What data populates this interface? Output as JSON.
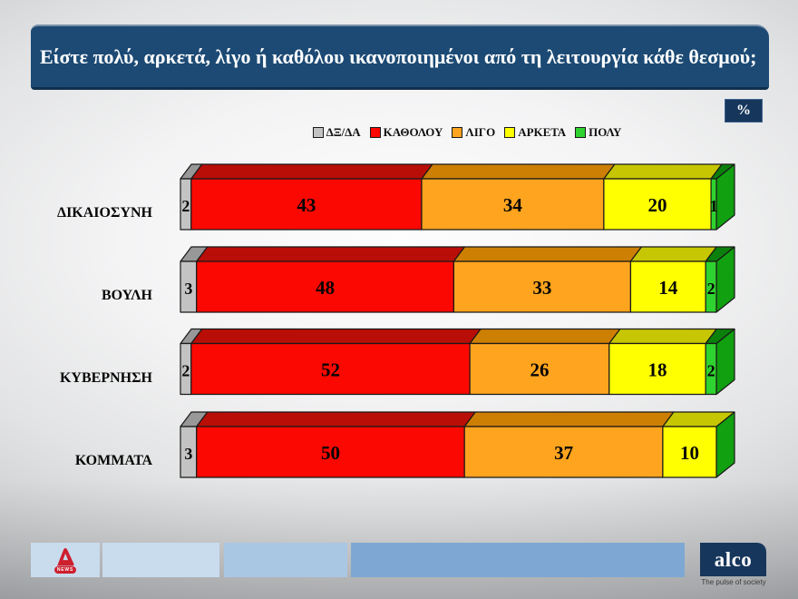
{
  "title": "Είστε πολύ, αρκετά, λίγο ή καθόλου ικανοποιημένοι από τη λειτουργία κάθε θεσμού;",
  "percent_label": "%",
  "chart_data": {
    "type": "bar",
    "stacked": true,
    "orientation": "horizontal",
    "title": "Είστε πολύ, αρκετά, λίγο ή καθόλου ικανοποιημένοι από τη λειτουργία κάθε θεσμού;",
    "categories": [
      "ΔΙΚΑΙΟΣΥΝΗ",
      "ΒΟΥΛΗ",
      "ΚΥΒΕΡΝΗΣΗ",
      "ΚΟΜΜΑΤΑ"
    ],
    "series": [
      {
        "name": "ΔΞ/ΔΑ",
        "color": "#c3c3c3",
        "top_color": "#989898",
        "values": [
          2,
          3,
          2,
          3
        ]
      },
      {
        "name": "ΚΑΘΟΛΟΥ",
        "color": "#fb0802",
        "top_color": "#b90e07",
        "values": [
          43,
          48,
          52,
          50
        ]
      },
      {
        "name": "ΛΙΓΟ",
        "color": "#ffa41e",
        "top_color": "#cd7f04",
        "values": [
          34,
          33,
          26,
          37
        ]
      },
      {
        "name": "ΑΡΚΕΤΑ",
        "color": "#ffff02",
        "top_color": "#c6c602",
        "values": [
          20,
          14,
          18,
          10
        ]
      },
      {
        "name": "ΠΟΛΥ",
        "color": "#2fd32f",
        "top_color": "#0b800b",
        "values": [
          1,
          2,
          2,
          0
        ]
      }
    ],
    "side_color": "#10a010",
    "xlim": [
      0,
      100
    ],
    "unit": "percent",
    "value_labels": true,
    "legend_position": "top"
  },
  "footer": {
    "alpha_news_label": "NEWS",
    "alco_label": "alco",
    "alco_tagline": "The pulse of society",
    "box_colors": [
      "#c9dcee",
      "#c9dcee",
      "#a9c7e3",
      "#7ea8d3"
    ]
  }
}
